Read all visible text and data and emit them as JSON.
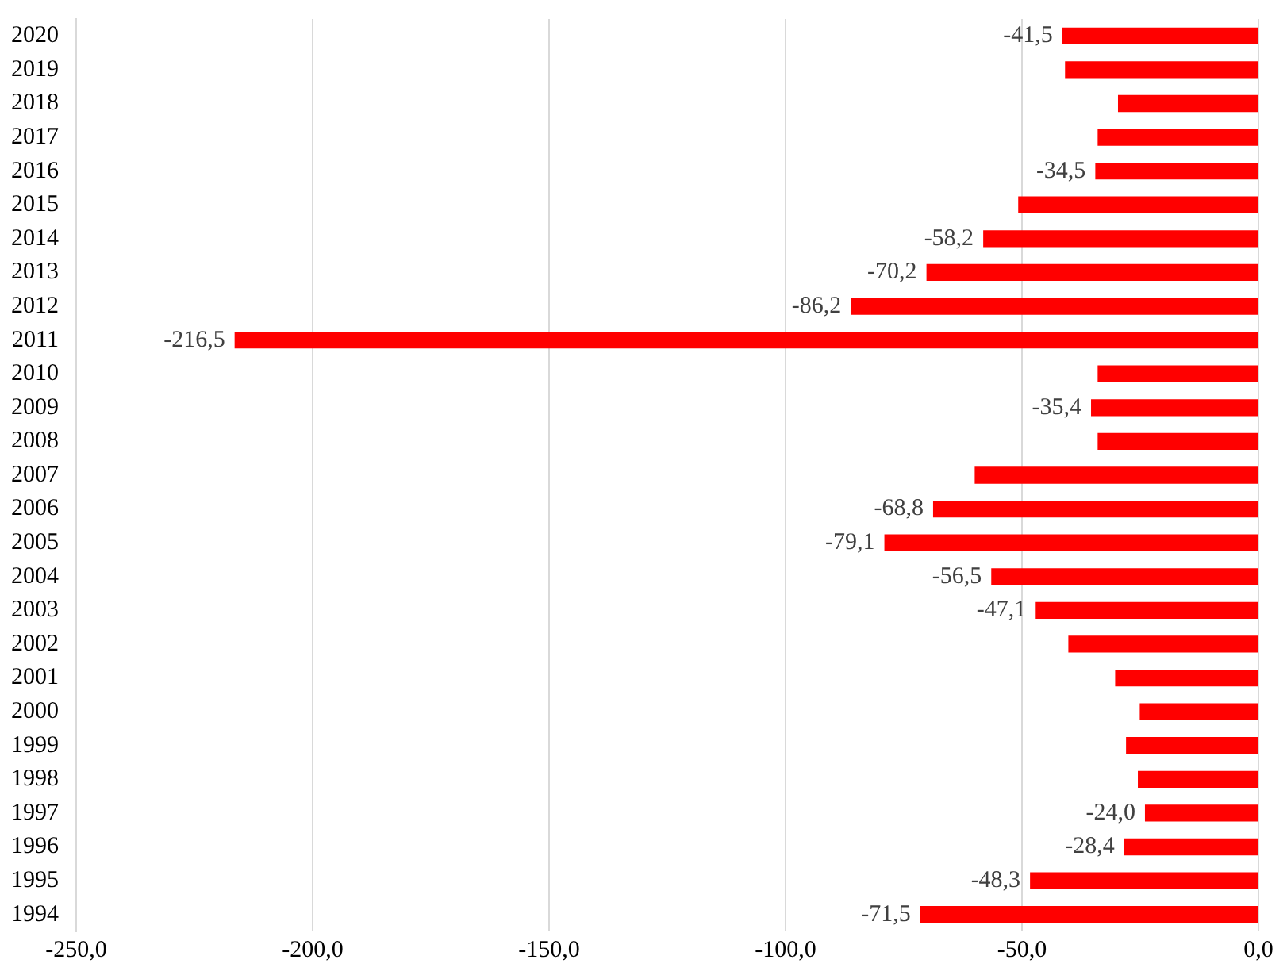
{
  "chart_data": {
    "type": "bar",
    "orientation": "horizontal",
    "color": "#ff0000",
    "categories": [
      "2020",
      "2019",
      "2018",
      "2017",
      "2016",
      "2015",
      "2014",
      "2013",
      "2012",
      "2011",
      "2010",
      "2009",
      "2008",
      "2007",
      "2006",
      "2005",
      "2004",
      "2003",
      "2002",
      "2001",
      "2000",
      "1999",
      "1998",
      "1997",
      "1996",
      "1995",
      "1994"
    ],
    "values": [
      -41.5,
      -40.9,
      -29.7,
      -34.0,
      -34.5,
      -50.8,
      -58.2,
      -70.2,
      -86.2,
      -216.5,
      -34.0,
      -35.4,
      -34.0,
      -60.0,
      -68.8,
      -79.1,
      -56.5,
      -47.1,
      -40.2,
      -30.3,
      -25.1,
      -28.0,
      -25.5,
      -24.0,
      -28.4,
      -48.3,
      -71.5
    ],
    "value_labels": [
      "-41,5",
      null,
      null,
      null,
      "-34,5",
      null,
      "-58,2",
      "-70,2",
      "-86,2",
      "-216,5",
      null,
      "-35,4",
      null,
      null,
      "-68,8",
      "-79,1",
      "-56,5",
      "-47,1",
      null,
      null,
      null,
      null,
      null,
      "-24,0",
      "-28,4",
      "-48,3",
      "-71,5"
    ],
    "xlim": [
      -250,
      0
    ],
    "xticks": [
      {
        "value": -250,
        "label": "-250,0"
      },
      {
        "value": -200,
        "label": "-200,0"
      },
      {
        "value": -150,
        "label": "-150,0"
      },
      {
        "value": -100,
        "label": "-100,0"
      },
      {
        "value": -50,
        "label": "-50,0"
      },
      {
        "value": 0,
        "label": "0,0"
      }
    ],
    "grid": "x",
    "legend": false
  }
}
